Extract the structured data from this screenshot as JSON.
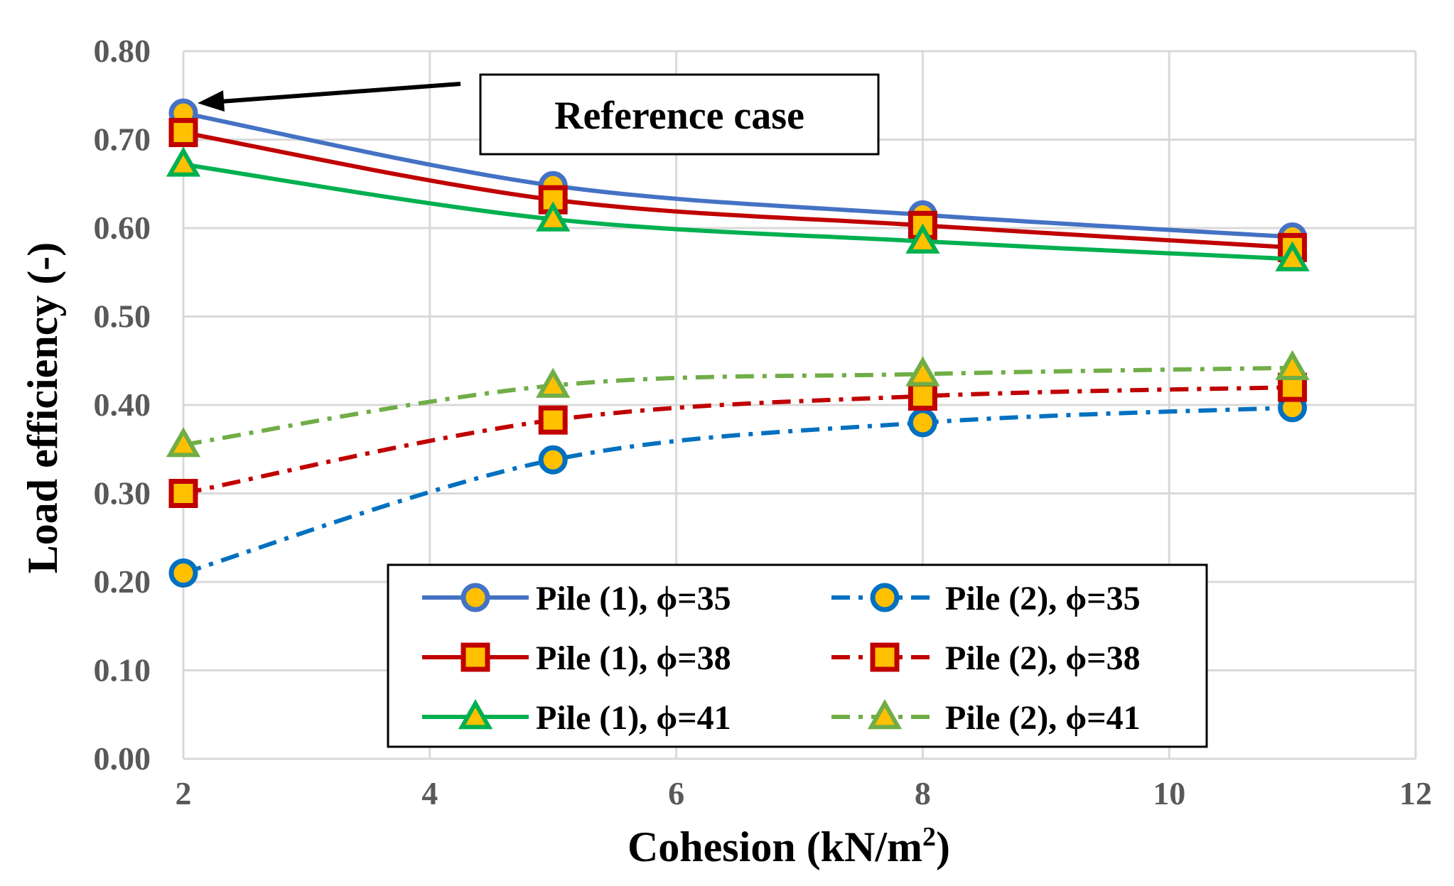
{
  "chart_data": {
    "type": "line",
    "title": "",
    "xlabel": "Cohesion (kN/m",
    "xlabel_sup": "2",
    "xlabel_suffix": ")",
    "ylabel": "Load efficiency (-)",
    "xlim": [
      2,
      12
    ],
    "ylim": [
      0.0,
      0.8
    ],
    "x_ticks": [
      "2",
      "4",
      "6",
      "8",
      "10",
      "12"
    ],
    "y_ticks": [
      "0.00",
      "0.10",
      "0.20",
      "0.30",
      "0.40",
      "0.50",
      "0.60",
      "0.70",
      "0.80"
    ],
    "grid": true,
    "legend_position": "bottom-center",
    "x": [
      2,
      5,
      8,
      11
    ],
    "series": [
      {
        "name": "Pile (1), ϕ=35",
        "values": [
          0.73,
          0.648,
          0.615,
          0.59
        ],
        "color": "#4472c4",
        "marker": "circle",
        "dash": "solid"
      },
      {
        "name": "Pile (1), ϕ=38",
        "values": [
          0.708,
          0.632,
          0.603,
          0.578
        ],
        "color": "#c00000",
        "marker": "square",
        "dash": "solid"
      },
      {
        "name": "Pile (1), ϕ=41",
        "values": [
          0.672,
          0.61,
          0.585,
          0.565
        ],
        "color": "#00b050",
        "marker": "triangle",
        "dash": "solid"
      },
      {
        "name": "Pile (2), ϕ=35",
        "values": [
          0.21,
          0.338,
          0.38,
          0.397
        ],
        "color": "#0070c0",
        "marker": "circle",
        "dash": "dashdot"
      },
      {
        "name": "Pile (2), ϕ=38",
        "values": [
          0.3,
          0.383,
          0.41,
          0.42
        ],
        "color": "#c00000",
        "marker": "square",
        "dash": "dashdot"
      },
      {
        "name": "Pile (2), ϕ=41",
        "values": [
          0.355,
          0.422,
          0.435,
          0.442
        ],
        "color": "#70ad47",
        "marker": "triangle",
        "dash": "dashdot"
      }
    ],
    "marker_fill": "#ffc000",
    "annotation": {
      "text": "Reference case",
      "target_x": 2,
      "target_y": 0.73
    }
  }
}
